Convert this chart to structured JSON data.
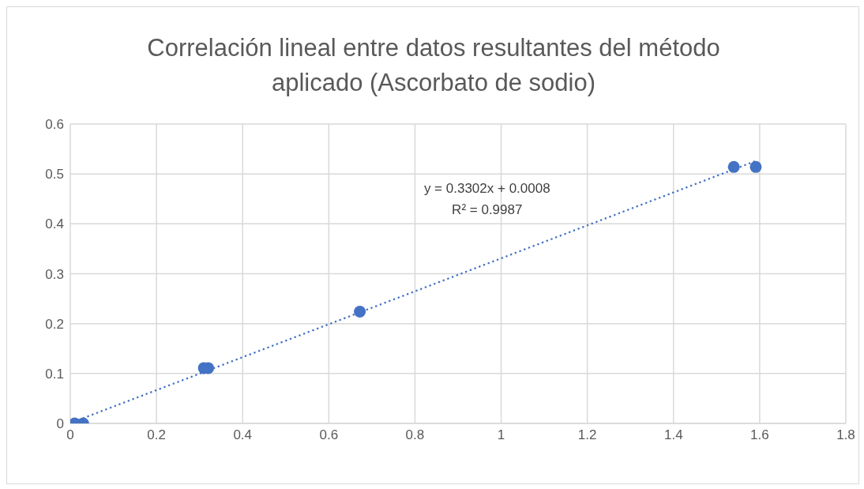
{
  "chart_data": {
    "type": "scatter",
    "title": "Correlación lineal entre datos resultantes del método aplicado (Ascorbato de sodio)",
    "series": [
      {
        "color": "#4472c4",
        "marker": "circle",
        "x": [
          0.01,
          0.03,
          0.31,
          0.32,
          0.672,
          1.54,
          1.591
        ],
        "values": [
          0,
          0,
          0.111,
          0.111,
          0.224,
          0.514,
          0.514
        ]
      },
      {
        "type": "line",
        "color": "#4472c4",
        "line_style": "dotted",
        "marker": "none",
        "x": [
          0.01,
          1.591
        ],
        "values": [
          0.004,
          0.526
        ]
      }
    ],
    "annotations": [
      "y = 0.3302x + 0.0008",
      "R² = 0.9987"
    ],
    "xlim": [
      0,
      1.8
    ],
    "xticks": [
      0,
      0.2,
      0.4,
      0.6,
      0.8,
      1,
      1.2,
      1.4,
      1.6,
      1.8
    ],
    "ylim": [
      0,
      0.6
    ],
    "yticks": [
      0,
      0.1,
      0.2,
      0.3,
      0.4,
      0.5,
      0.6
    ],
    "grid": true,
    "legend": false
  }
}
